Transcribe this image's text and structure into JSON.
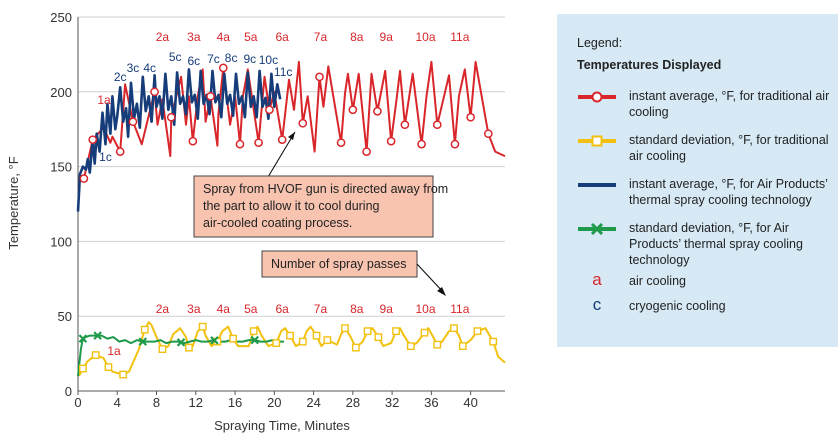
{
  "chart_data": {
    "type": "line",
    "xlabel": "Spraying Time, Minutes",
    "ylabel": "Temperature, °F",
    "xlim": [
      0,
      43.5
    ],
    "ylim": [
      0,
      250
    ],
    "xticks": [
      0,
      4,
      8,
      12,
      16,
      20,
      24,
      28,
      32,
      36,
      40
    ],
    "yticks": [
      0,
      50,
      100,
      150,
      200,
      250
    ],
    "grid": "horizontal",
    "legend": "right",
    "colors": {
      "red": "#d9262b",
      "yellow": "#f2c10f",
      "blue": "#163d7a",
      "green": "#1f9a4a"
    },
    "series": [
      {
        "name": "instant average, °F, for traditional air cooling",
        "color": "#d9262b",
        "marker": "circle",
        "x": [
          0.6,
          1.5,
          2.6,
          3.3,
          3.5,
          4.3,
          4.8,
          5.6,
          6.5,
          7.5,
          7.8,
          8.1,
          8.6,
          9.4,
          9.5,
          10.5,
          11.0,
          11.3,
          11.7,
          12.2,
          12.7,
          13.0,
          13.5,
          14.2,
          14.3,
          14.8,
          15.5,
          16.0,
          16.5,
          16.8,
          17.3,
          18.4,
          19.0,
          19.5,
          20.0,
          20.8,
          21.5,
          22.0,
          22.5,
          22.9,
          23.4,
          24.1,
          24.6,
          25.0,
          25.5,
          26.8,
          27.2,
          27.5,
          28.0,
          28.6,
          29.4,
          29.9,
          30.5,
          31.3,
          31.9,
          32.4,
          32.8,
          33.3,
          34.1,
          35.0,
          35.5,
          36.0,
          36.6,
          37.8,
          38.4,
          38.8,
          39.4,
          40.0,
          40.5,
          41.8,
          42.5,
          43.5
        ],
        "y": [
          142,
          168,
          176,
          166,
          170,
          160,
          205,
          180,
          165,
          192,
          200,
          178,
          195,
          157,
          183,
          210,
          178,
          197,
          167,
          197,
          215,
          180,
          197,
          164,
          185,
          216,
          178,
          197,
          165,
          197,
          215,
          166,
          210,
          188,
          200,
          168,
          208,
          188,
          220,
          179,
          197,
          160,
          210,
          190,
          217,
          166,
          199,
          212,
          188,
          212,
          160,
          212,
          187,
          214,
          167,
          192,
          214,
          178,
          212,
          165,
          197,
          220,
          178,
          211,
          165,
          197,
          215,
          183,
          220,
          172,
          160,
          157
        ]
      },
      {
        "name": "standard deviation, °F, for traditional air cooling",
        "color": "#f2c10f",
        "marker": "square",
        "x": [
          0.1,
          0.5,
          1.0,
          1.8,
          2.6,
          3.1,
          3.5,
          4.0,
          4.6,
          5.2,
          6.2,
          6.8,
          7.2,
          7.5,
          8.0,
          8.6,
          9.2,
          9.7,
          10.4,
          11.0,
          11.3,
          11.7,
          12.2,
          12.7,
          13.0,
          13.6,
          14.2,
          14.7,
          15.3,
          15.8,
          16.3,
          17.4,
          17.9,
          18.3,
          18.7,
          19.4,
          20.2,
          20.7,
          21.1,
          21.6,
          22.2,
          22.9,
          23.3,
          23.7,
          24.3,
          24.8,
          25.4,
          26.4,
          26.8,
          27.2,
          27.7,
          28.3,
          29.0,
          29.5,
          30.0,
          30.6,
          31.1,
          31.9,
          32.4,
          32.8,
          33.2,
          33.9,
          34.5,
          35.3,
          35.7,
          36.1,
          36.6,
          37.1,
          37.8,
          38.3,
          38.8,
          39.2,
          40.0,
          40.7,
          41.5,
          42.3,
          42.8,
          43.5
        ],
        "y": [
          10,
          15,
          20,
          24,
          22,
          16,
          13,
          12,
          11,
          13,
          28,
          41,
          46,
          44,
          36,
          28,
          30,
          38,
          42,
          36,
          29,
          30,
          40,
          43,
          37,
          30,
          33,
          40,
          43,
          35,
          30,
          30,
          40,
          43,
          37,
          30,
          32,
          40,
          42,
          37,
          30,
          33,
          40,
          43,
          37,
          30,
          34,
          31,
          38,
          42,
          37,
          29,
          33,
          40,
          42,
          36,
          30,
          32,
          40,
          42,
          37,
          30,
          32,
          39,
          42,
          37,
          31,
          33,
          40,
          42,
          37,
          30,
          34,
          40,
          42,
          33,
          23,
          19
        ]
      },
      {
        "name": "instant average, °F, for Air Products' thermal spray cooling technology",
        "color": "#163d7a",
        "marker": "none",
        "x": [
          0.0,
          0.2,
          0.5,
          0.8,
          1.0,
          1.2,
          1.5,
          1.7,
          1.9,
          2.2,
          2.5,
          2.8,
          3.0,
          3.3,
          3.5,
          3.8,
          4.0,
          4.3,
          4.6,
          4.9,
          5.1,
          5.4,
          5.7,
          6.0,
          6.3,
          6.6,
          6.9,
          7.2,
          7.5,
          7.8,
          8.0,
          8.3,
          8.6,
          8.9,
          9.2,
          9.5,
          9.8,
          10.1,
          10.4,
          10.7,
          11.0,
          11.3,
          11.6,
          11.9,
          12.2,
          12.5,
          12.8,
          13.1,
          13.4,
          13.7,
          14.0,
          14.3,
          14.6,
          14.9,
          15.2,
          15.5,
          15.8,
          16.1,
          16.4,
          16.7,
          17.0,
          17.3,
          17.6,
          17.9,
          18.2,
          18.5,
          18.8,
          19.1,
          19.4,
          19.7,
          20.0,
          20.3,
          20.6
        ],
        "y": [
          120,
          145,
          150,
          148,
          155,
          146,
          168,
          152,
          172,
          160,
          186,
          165,
          192,
          172,
          197,
          175,
          184,
          203,
          180,
          189,
          170,
          206,
          182,
          192,
          176,
          210,
          187,
          197,
          180,
          211,
          190,
          197,
          182,
          212,
          188,
          197,
          178,
          213,
          192,
          197,
          185,
          215,
          193,
          198,
          182,
          214,
          192,
          198,
          185,
          214,
          193,
          198,
          183,
          212,
          192,
          198,
          184,
          212,
          192,
          197,
          183,
          213,
          190,
          197,
          183,
          214,
          190,
          196,
          182,
          212,
          190,
          205,
          195
        ]
      },
      {
        "name": "standard deviation, °F, for Air Products' thermal spray cooling technology",
        "color": "#1f9a4a",
        "marker": "x",
        "x": [
          0.0,
          0.3,
          0.5,
          0.8,
          1.2,
          1.8,
          2.4,
          3.0,
          3.6,
          4.2,
          4.8,
          5.4,
          6.0,
          6.6,
          7.2,
          7.8,
          8.4,
          9.0,
          9.6,
          10.2,
          10.8,
          11.4,
          12.0,
          12.6,
          13.2,
          13.8,
          14.4,
          15.0,
          15.6,
          16.2,
          16.8,
          17.4,
          18.0,
          18.6,
          19.2,
          19.8,
          20.4,
          21.0
        ],
        "y": [
          10,
          28,
          35,
          36,
          37,
          37,
          37,
          35,
          36,
          33,
          34,
          32,
          34,
          33,
          33,
          33,
          34,
          32,
          33,
          33,
          32,
          33,
          34,
          33,
          33,
          34,
          33,
          33,
          34,
          33,
          33,
          34,
          34,
          33,
          33,
          34,
          33,
          33
        ]
      }
    ],
    "red_markers_x": [
      0.6,
      1.5,
      4.3,
      5.6,
      7.8,
      9.5,
      11.7,
      13.5,
      14.8,
      16.5,
      18.4,
      19.5,
      20.8,
      22.9,
      24.6,
      26.8,
      28.0,
      29.4,
      30.5,
      31.9,
      33.3,
      35.0,
      36.6,
      38.4,
      40.0,
      41.8
    ],
    "yellow_markers_x": [
      0.5,
      1.8,
      3.1,
      4.6,
      6.8,
      8.6,
      11.3,
      12.7,
      14.2,
      15.8,
      17.9,
      20.2,
      21.6,
      22.9,
      24.3,
      25.4,
      27.2,
      28.3,
      29.5,
      30.6,
      32.4,
      33.9,
      35.3,
      36.6,
      38.3,
      39.2,
      40.7,
      42.3
    ],
    "green_markers_x": [
      0.5,
      2.0,
      6.6,
      10.5,
      13.9,
      18.0
    ],
    "annotations": {
      "top_row_air": [
        "2a",
        "3a",
        "4a",
        "5a",
        "6a",
        "7a",
        "8a",
        "9a",
        "10a",
        "11a"
      ],
      "top_row_cryo": [
        "1c",
        "2c",
        "3c",
        "4c",
        "5c",
        "6c",
        "7c",
        "8c",
        "9c",
        "10c",
        "11c"
      ],
      "top_air_1": "1a",
      "bottom_row_air": [
        "2a",
        "3a",
        "4a",
        "5a",
        "6a",
        "7a",
        "8a",
        "9a",
        "10a",
        "11a"
      ],
      "bottom_air_1": "1a",
      "callout_1": "Spray from HVOF gun is directed away from the part to allow it to cool during air-cooled coating process.",
      "callout_2": "Number of spray passes"
    }
  },
  "legend": {
    "title": "Legend:",
    "heading": "Temperatures Displayed",
    "items": [
      {
        "text": "instant average, °F, for traditional air cooling",
        "icon": "red-line-circle"
      },
      {
        "text": "standard deviation, °F, for traditional air cooling",
        "icon": "yellow-line-square"
      },
      {
        "text": "instant average, °F, for Air Products’ thermal spray cooling technology",
        "icon": "blue-line"
      },
      {
        "text": "standard deviation, °F, for Air Products’ thermal spray cooling technology",
        "icon": "green-line-x"
      },
      {
        "text": "air cooling",
        "letter": "a"
      },
      {
        "text": "cryogenic cooling",
        "letter": "c"
      }
    ]
  }
}
